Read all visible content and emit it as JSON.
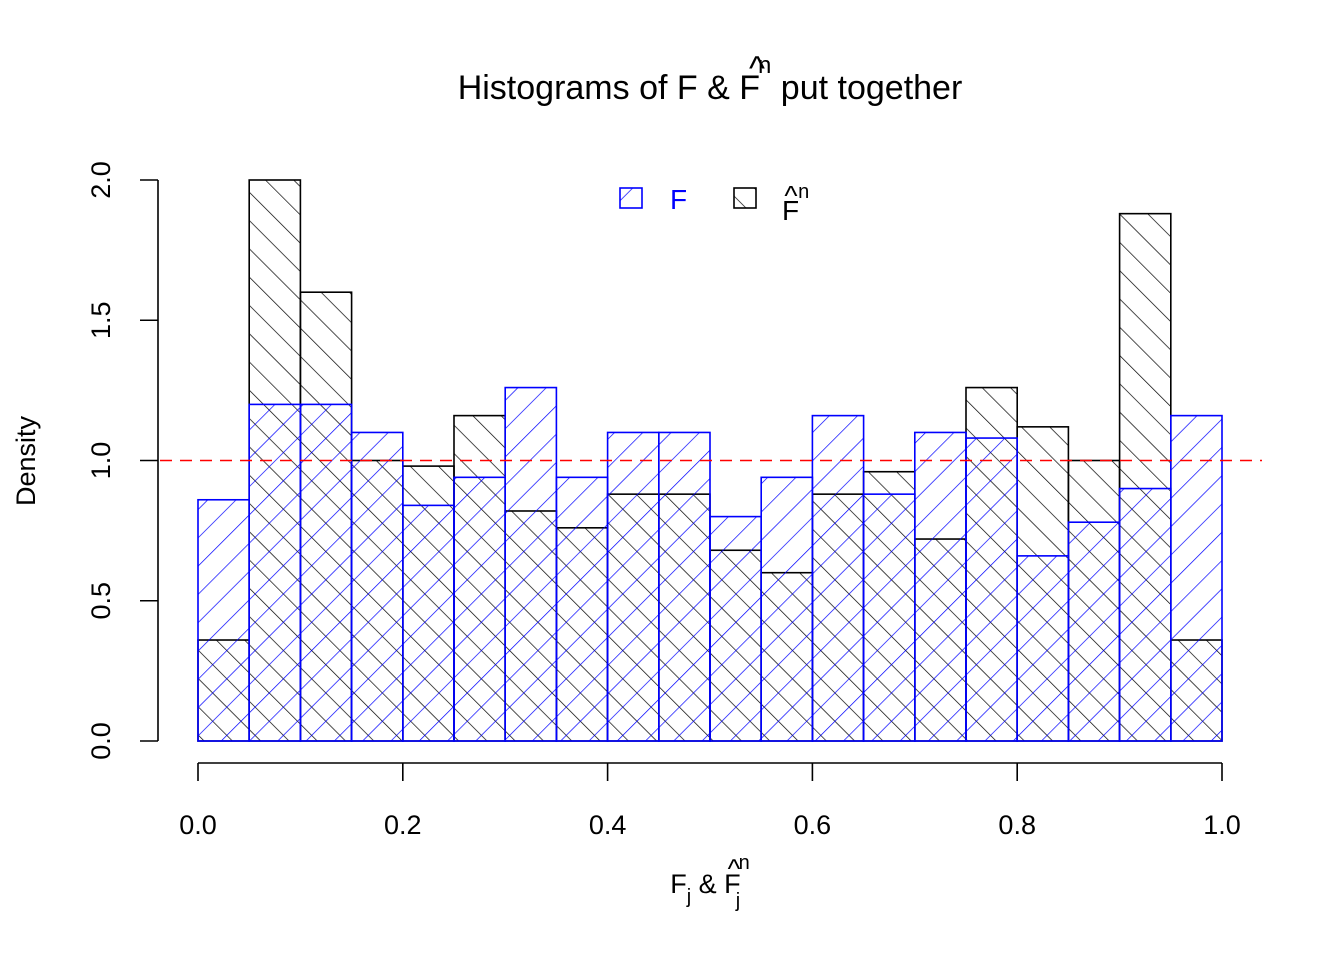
{
  "chart_data": {
    "type": "bar",
    "title": {
      "main": "Histograms of F & ",
      "hat_symbol": "F",
      "hat_sup": "n",
      "suffix": " put together"
    },
    "xlabel": {
      "f": "F",
      "f_sub": "j",
      "amp": " & ",
      "hat_symbol": "F",
      "hat_sub": "j",
      "hat_sup": "n"
    },
    "ylabel": "Density",
    "xlim": [
      0,
      1
    ],
    "ylim": [
      0,
      2
    ],
    "x_ticks": [
      "0.0",
      "0.2",
      "0.4",
      "0.6",
      "0.8",
      "1.0"
    ],
    "y_ticks": [
      "0.0",
      "0.5",
      "1.0",
      "1.5",
      "2.0"
    ],
    "bin_edges": [
      0,
      0.05,
      0.1,
      0.15,
      0.2,
      0.25,
      0.3,
      0.35,
      0.4,
      0.45,
      0.5,
      0.55,
      0.6,
      0.65,
      0.7,
      0.75,
      0.8,
      0.85,
      0.9,
      0.95,
      1.0
    ],
    "reference_line": {
      "y": 1.0,
      "color": "#ff0000",
      "style": "dashed"
    },
    "series": [
      {
        "name": "F",
        "color": "#0000ff",
        "hatch": "diagonal-down",
        "values": [
          0.86,
          1.2,
          1.2,
          1.1,
          0.84,
          0.94,
          1.26,
          0.94,
          1.1,
          1.1,
          0.8,
          0.94,
          1.16,
          0.88,
          1.1,
          1.08,
          0.66,
          0.78,
          0.9,
          1.16
        ]
      },
      {
        "name": "F̂ⁿ",
        "color": "#000000",
        "hatch": "diagonal-up",
        "values": [
          0.36,
          2.0,
          1.6,
          1.0,
          0.98,
          1.16,
          0.82,
          0.76,
          0.88,
          0.88,
          0.68,
          0.6,
          0.88,
          0.96,
          0.72,
          1.26,
          1.12,
          1.0,
          1.88,
          0.36
        ]
      }
    ],
    "legend": {
      "position": "top-center",
      "items": [
        {
          "label": "F",
          "color": "#0000ff"
        },
        {
          "label_symbol": "F",
          "label_sup": "n",
          "color": "#000000"
        }
      ]
    }
  }
}
